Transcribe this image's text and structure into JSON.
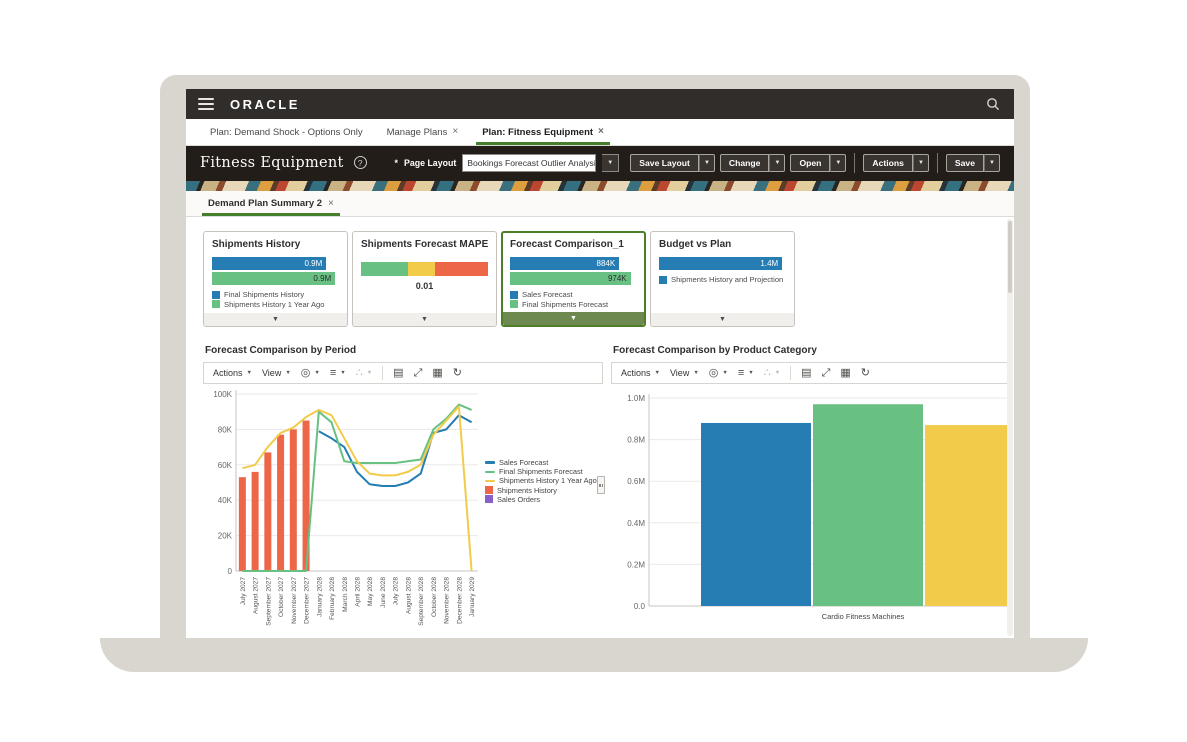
{
  "topbar": {
    "logo": "ORACLE"
  },
  "tabs": [
    {
      "label": "Plan: Demand Shock - Options Only",
      "closable": false,
      "active": false
    },
    {
      "label": "Manage Plans",
      "closable": true,
      "active": false
    },
    {
      "label": "Plan: Fitness Equipment",
      "closable": true,
      "active": true
    }
  ],
  "header": {
    "title": "Fitness Equipment",
    "help_icon": "?",
    "page_layout_required_mark": "*",
    "page_layout_label": "Page Layout",
    "page_layout_value": "Bookings Forecast Outlier Analysis",
    "buttons": [
      "Save Layout",
      "Change",
      "Open",
      "Actions",
      "Save"
    ],
    "separator_before": [
      3,
      4
    ]
  },
  "subtab": {
    "label": "Demand Plan Summary 2",
    "close": "×"
  },
  "colors": {
    "blue": "#267db3",
    "green": "#68c182",
    "yellow": "#f2cb4a",
    "red": "#ed6647",
    "purple": "#8561c8",
    "accent_green": "#457f2b"
  },
  "tiles": [
    {
      "title": "Shipments History",
      "selected": false,
      "bars": [
        {
          "color": "#267db3",
          "label": "0.9M",
          "width_pct": 90
        },
        {
          "color": "#68c182",
          "label": "0.9M",
          "width_pct": 97
        }
      ],
      "legend": [
        {
          "color": "#267db3",
          "label": "Final Shipments History"
        },
        {
          "color": "#68c182",
          "label": "Shipments History 1 Year Ago"
        }
      ]
    },
    {
      "title": "Shipments Forecast MAPE",
      "selected": false,
      "gauge": {
        "segments": [
          {
            "color": "#68c182",
            "pct": 37
          },
          {
            "color": "#f2cb4a",
            "pct": 21
          },
          {
            "color": "#ed6647",
            "pct": 42
          }
        ],
        "value": "0.01"
      }
    },
    {
      "title": "Forecast Comparison_1",
      "selected": true,
      "bars": [
        {
          "color": "#267db3",
          "label": "884K",
          "width_pct": 86
        },
        {
          "color": "#68c182",
          "label": "974K",
          "width_pct": 95
        }
      ],
      "legend": [
        {
          "color": "#267db3",
          "label": "Sales Forecast"
        },
        {
          "color": "#68c182",
          "label": "Final Shipments Forecast"
        }
      ]
    },
    {
      "title": "Budget vs Plan",
      "selected": false,
      "bars": [
        {
          "color": "#267db3",
          "label": "1.4M",
          "width_pct": 97
        }
      ],
      "legend": [
        {
          "color": "#267db3",
          "label": "Shipments History and Projection"
        }
      ]
    }
  ],
  "chart_toolbar": {
    "actions_label": "Actions",
    "view_label": "View",
    "icon_menus": [
      "chart-type-icon",
      "format-icon",
      "network-icon"
    ],
    "icon_buttons": [
      "export-icon",
      "expand-icon",
      "table-icon",
      "refresh-icon"
    ]
  },
  "chart_data": [
    {
      "type": "combo-line-bar",
      "title": "Forecast Comparison by Period",
      "categories": [
        "July 2027",
        "August 2027",
        "September 2027",
        "October 2027",
        "November 2027",
        "December 2027",
        "January 2028",
        "February 2028",
        "March 2028",
        "April 2028",
        "May 2028",
        "June 2028",
        "July 2028",
        "August 2028",
        "September 2028",
        "October 2028",
        "November 2028",
        "December 2028",
        "January 2029"
      ],
      "ylim": [
        0,
        100000
      ],
      "yticks": [
        0,
        20000,
        40000,
        60000,
        80000,
        100000
      ],
      "ytick_labels": [
        "0",
        "20K",
        "40K",
        "60K",
        "80K",
        "100K"
      ],
      "grid": true,
      "legend_position": "right",
      "series": [
        {
          "name": "Sales Forecast",
          "type": "line",
          "color": "#267db3",
          "values": [
            null,
            null,
            null,
            null,
            null,
            null,
            79000,
            75000,
            70000,
            56000,
            49000,
            48000,
            48000,
            50000,
            55000,
            78000,
            80000,
            88000,
            84000
          ]
        },
        {
          "name": "Final Shipments Forecast",
          "type": "line",
          "color": "#68c182",
          "values": [
            0,
            0,
            0,
            0,
            0,
            0,
            90000,
            84000,
            62000,
            61000,
            61000,
            61000,
            61000,
            62000,
            63000,
            80000,
            86000,
            94000,
            91000
          ]
        },
        {
          "name": "Shipments History 1 Year Ago",
          "type": "line",
          "color": "#f2cb4a",
          "values": [
            58000,
            60000,
            70000,
            78000,
            81000,
            87000,
            91000,
            88000,
            75000,
            62000,
            55000,
            54000,
            54000,
            56000,
            60000,
            77000,
            85000,
            93000,
            0
          ]
        },
        {
          "name": "Shipments History",
          "type": "bar",
          "color": "#ed6647",
          "values": [
            53000,
            56000,
            67000,
            77000,
            80000,
            85000,
            null,
            null,
            null,
            null,
            null,
            null,
            null,
            null,
            null,
            null,
            null,
            null,
            null
          ]
        },
        {
          "name": "Sales Orders",
          "type": "bar",
          "color": "#8561c8",
          "values": [
            null,
            null,
            null,
            null,
            null,
            null,
            null,
            null,
            null,
            null,
            null,
            null,
            null,
            null,
            null,
            null,
            null,
            null,
            null
          ]
        }
      ]
    },
    {
      "type": "bar",
      "title": "Forecast Comparison by Product Category",
      "categories": [
        "Cardio Fitness Machines"
      ],
      "ylim": [
        0,
        1000000
      ],
      "yticks": [
        0,
        200000,
        400000,
        600000,
        800000,
        1000000
      ],
      "ytick_labels": [
        "0.0",
        "0.2M",
        "0.4M",
        "0.6M",
        "0.8M",
        "1.0M"
      ],
      "grid": true,
      "series": [
        {
          "name": "Sales Forecast",
          "color": "#267db3",
          "values": [
            880000
          ]
        },
        {
          "name": "Final Shipments Forecast",
          "color": "#68c182",
          "values": [
            970000
          ]
        },
        {
          "name": "Shipments History 1 Year Ago",
          "color": "#f2cb4a",
          "values": [
            870000
          ]
        }
      ]
    }
  ]
}
